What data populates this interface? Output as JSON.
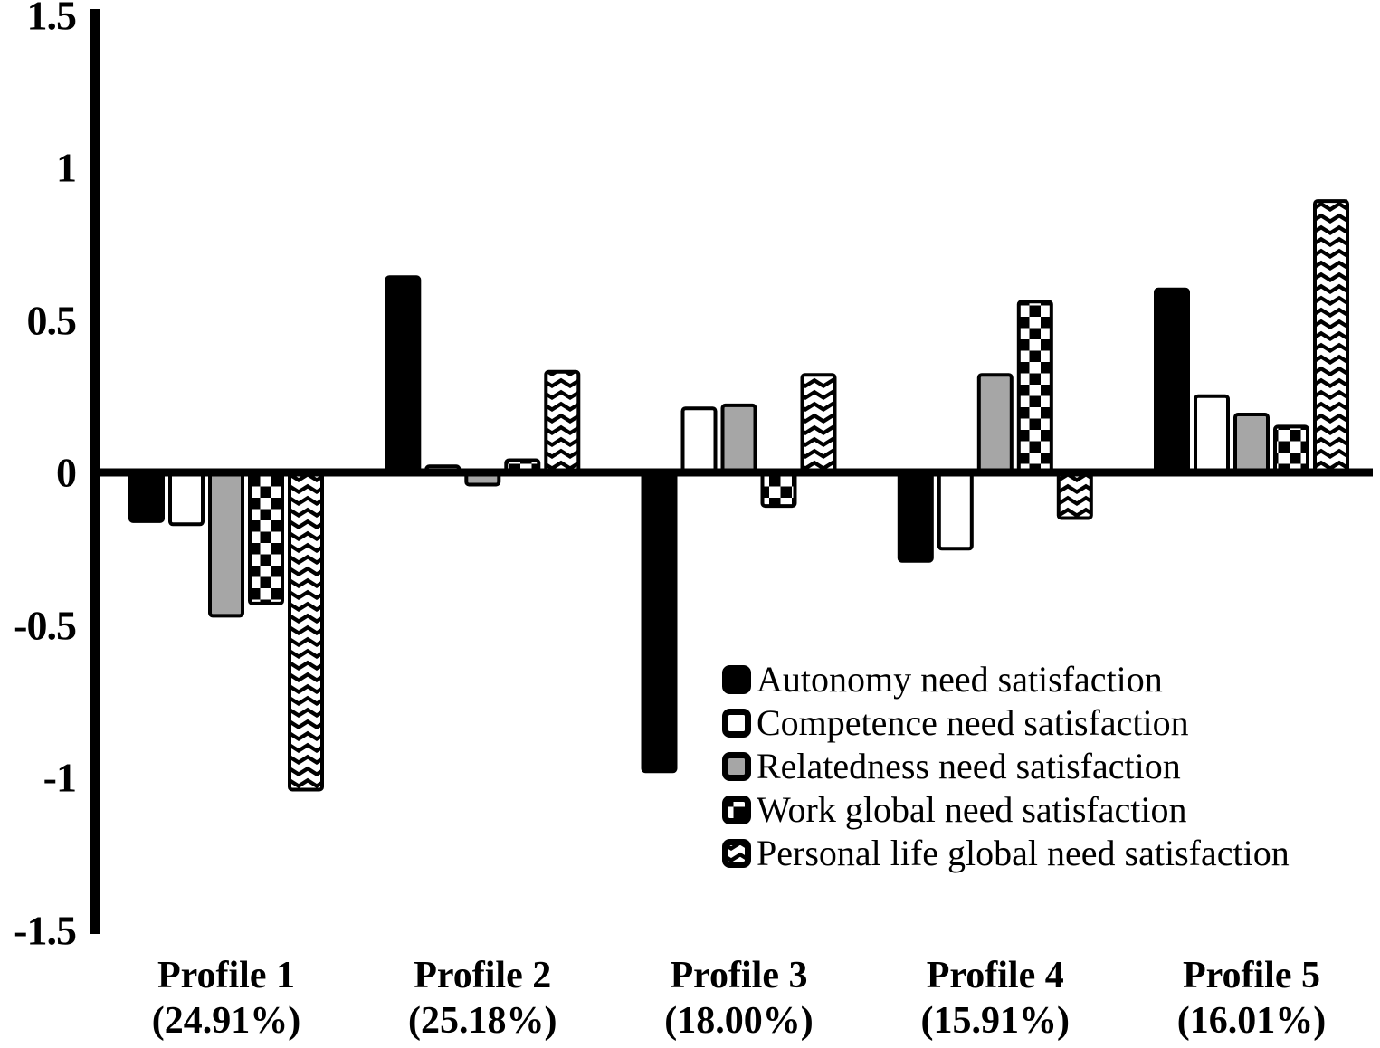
{
  "figure_title": "",
  "colors": {
    "foreground": "#000000",
    "background": "#ffffff",
    "bar_black": "#000000",
    "bar_white": "#ffffff",
    "bar_gray": "#a6a6a6"
  },
  "y_axis": {
    "tick_labels": [
      "1.5",
      "1",
      "0.5",
      "0",
      "-0.5",
      "-1",
      "-1.5"
    ],
    "tick_values": [
      1.5,
      1,
      0.5,
      0,
      -0.5,
      -1,
      -1.5
    ]
  },
  "chart_data": {
    "type": "bar",
    "title": "",
    "xlabel": "",
    "ylabel": "",
    "ylim": [
      -1.5,
      1.5
    ],
    "ytick_step": 0.5,
    "grid": false,
    "legend_position": "inside-bottom-right",
    "categories": [
      "Profile 1",
      "Profile 2",
      "Profile 3",
      "Profile 4",
      "Profile 5"
    ],
    "category_sublabels": [
      "(24.91%)",
      "(25.18%)",
      "(18.00%)",
      "(15.91%)",
      "(16.01%)"
    ],
    "series": [
      {
        "name": "Autonomy need satisfaction",
        "pattern": "solid-black",
        "values": [
          -0.16,
          0.64,
          -0.98,
          -0.29,
          0.6
        ]
      },
      {
        "name": "Competence need satisfaction",
        "pattern": "white",
        "values": [
          -0.17,
          0.02,
          0.21,
          -0.25,
          0.25
        ]
      },
      {
        "name": "Relatedness need satisfaction",
        "pattern": "gray",
        "values": [
          -0.47,
          -0.04,
          0.22,
          0.32,
          0.19
        ]
      },
      {
        "name": "Work global need satisfaction",
        "pattern": "checker",
        "values": [
          -0.43,
          0.04,
          -0.11,
          0.56,
          0.15
        ]
      },
      {
        "name": "Personal life global need satisfaction",
        "pattern": "chevron",
        "values": [
          -1.04,
          0.33,
          0.32,
          -0.15,
          0.89
        ]
      }
    ]
  }
}
